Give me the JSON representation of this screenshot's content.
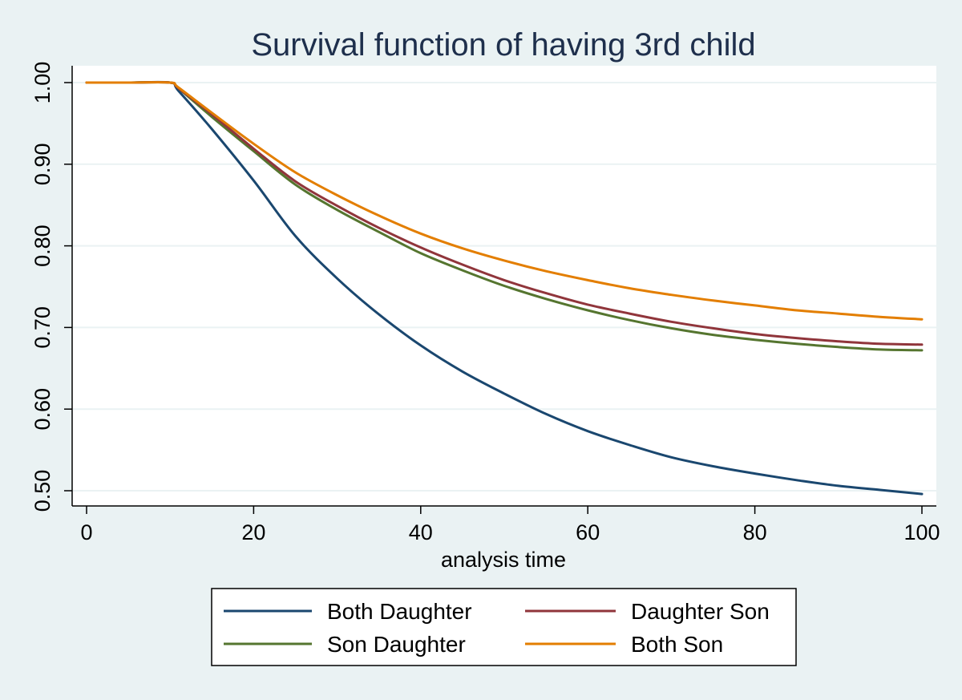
{
  "chart_data": {
    "type": "line",
    "title": "Survival function of having 3rd child",
    "xlabel": "analysis time",
    "ylabel": "",
    "xlim": [
      0,
      100
    ],
    "ylim": [
      0.48,
      1.02
    ],
    "x_ticks": [
      0,
      20,
      40,
      60,
      80,
      100
    ],
    "x_tick_labels": [
      "0",
      "20",
      "40",
      "60",
      "80",
      "100"
    ],
    "y_ticks": [
      0.5,
      0.6,
      0.7,
      0.8,
      0.9,
      1.0
    ],
    "y_tick_labels": [
      "0.50",
      "0.60",
      "0.70",
      "0.80",
      "0.90",
      "1.00"
    ],
    "grid": true,
    "legend_position": "bottom",
    "x": [
      0,
      5,
      10,
      11,
      15,
      20,
      25,
      30,
      35,
      40,
      45,
      50,
      55,
      60,
      65,
      70,
      75,
      80,
      85,
      90,
      95,
      100
    ],
    "series": [
      {
        "name": "Both Daughter",
        "color": "#1A476F",
        "values": [
          1.0,
          1.0,
          1.0,
          0.99,
          0.943,
          0.88,
          0.812,
          0.76,
          0.716,
          0.678,
          0.646,
          0.619,
          0.594,
          0.573,
          0.556,
          0.541,
          0.53,
          0.521,
          0.513,
          0.506,
          0.501,
          0.496
        ]
      },
      {
        "name": "Daughter Son",
        "color": "#90353B",
        "values": [
          1.0,
          1.0,
          1.0,
          0.993,
          0.961,
          0.919,
          0.879,
          0.849,
          0.822,
          0.798,
          0.777,
          0.758,
          0.742,
          0.728,
          0.717,
          0.707,
          0.699,
          0.692,
          0.687,
          0.683,
          0.68,
          0.679
        ]
      },
      {
        "name": "Son Daughter",
        "color": "#55752F",
        "values": [
          1.0,
          1.0,
          1.0,
          0.993,
          0.958,
          0.916,
          0.875,
          0.844,
          0.817,
          0.791,
          0.77,
          0.751,
          0.735,
          0.721,
          0.709,
          0.699,
          0.691,
          0.685,
          0.68,
          0.676,
          0.673,
          0.672
        ]
      },
      {
        "name": "Both Son",
        "color": "#E37E00",
        "values": [
          1.0,
          1.0,
          1.0,
          0.994,
          0.963,
          0.925,
          0.89,
          0.862,
          0.837,
          0.815,
          0.797,
          0.782,
          0.769,
          0.758,
          0.748,
          0.74,
          0.733,
          0.727,
          0.721,
          0.717,
          0.713,
          0.71
        ]
      }
    ]
  },
  "colors": {
    "page_background": "#EAF2F3",
    "plot_background": "#FFFFFF",
    "gridline": "#EAF2F3",
    "title": "#1E2F4C"
  }
}
